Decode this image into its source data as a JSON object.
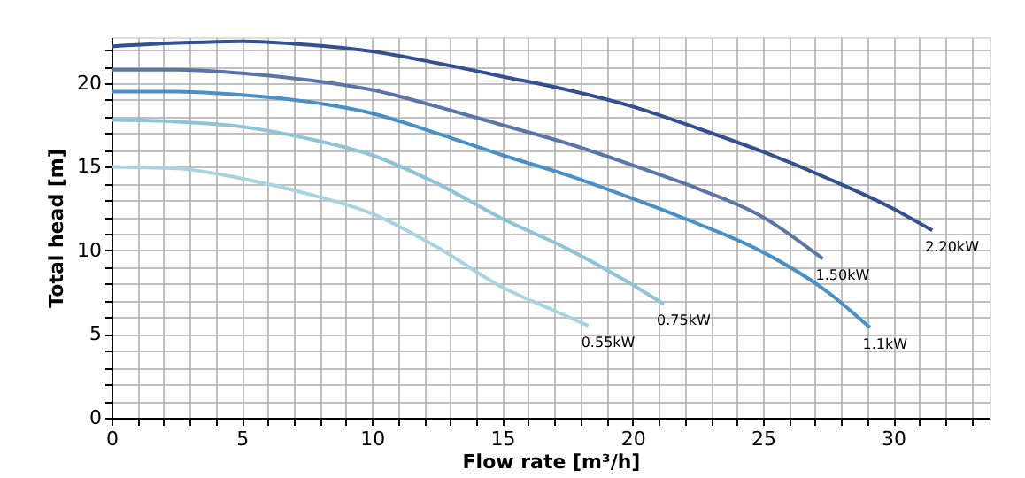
{
  "chart_data": {
    "type": "line",
    "xlabel": "Flow rate [m³/h]",
    "ylabel": "Total head [m]",
    "xlim": [
      0,
      33.7
    ],
    "ylim": [
      0,
      22.75
    ],
    "xticks": [
      0,
      5,
      10,
      15,
      20,
      25,
      30
    ],
    "yticks": [
      0,
      5,
      10,
      15,
      20
    ],
    "grid": true,
    "legend": false,
    "marker": "none",
    "line_style": "solid",
    "series": [
      {
        "name": "2.20kW",
        "color": "#34508f",
        "x": [
          0,
          2.5,
          5,
          7.5,
          10,
          12.5,
          15,
          17.5,
          20,
          22.5,
          25,
          27.5,
          30,
          31.5
        ],
        "values": [
          22.2,
          22.4,
          22.5,
          22.3,
          21.9,
          21.2,
          20.4,
          19.6,
          18.6,
          17.3,
          15.9,
          14.3,
          12.5,
          11.2
        ]
      },
      {
        "name": "1.50kW",
        "color": "#5b75a8",
        "x": [
          0,
          2.5,
          5,
          7.5,
          10,
          12.5,
          15,
          17.5,
          20,
          22.5,
          25,
          27.3
        ],
        "values": [
          20.8,
          20.8,
          20.6,
          20.2,
          19.6,
          18.6,
          17.5,
          16.4,
          15.1,
          13.7,
          12.0,
          9.5
        ]
      },
      {
        "name": "1.1kW",
        "color": "#4a90c8",
        "x": [
          0,
          2.5,
          5,
          7.5,
          10,
          12.5,
          15,
          17.5,
          20,
          22.5,
          25,
          27.5,
          29.1
        ],
        "values": [
          19.5,
          19.5,
          19.3,
          18.9,
          18.2,
          17.0,
          15.7,
          14.5,
          13.1,
          11.6,
          9.9,
          7.5,
          5.4
        ]
      },
      {
        "name": "0.75kW",
        "color": "#8ec4d8",
        "x": [
          0,
          2.5,
          5,
          7.5,
          10,
          12.5,
          15,
          17.5,
          19.5,
          21.2
        ],
        "values": [
          17.8,
          17.7,
          17.4,
          16.7,
          15.7,
          14.0,
          11.9,
          10.1,
          8.4,
          6.8
        ]
      },
      {
        "name": "0.55kW",
        "color": "#a8d4e0",
        "x": [
          0,
          2.5,
          5,
          7.5,
          10,
          12.5,
          15,
          17,
          18.3
        ],
        "values": [
          15.0,
          14.9,
          14.3,
          13.4,
          12.2,
          10.2,
          7.8,
          6.4,
          5.5
        ]
      }
    ]
  }
}
